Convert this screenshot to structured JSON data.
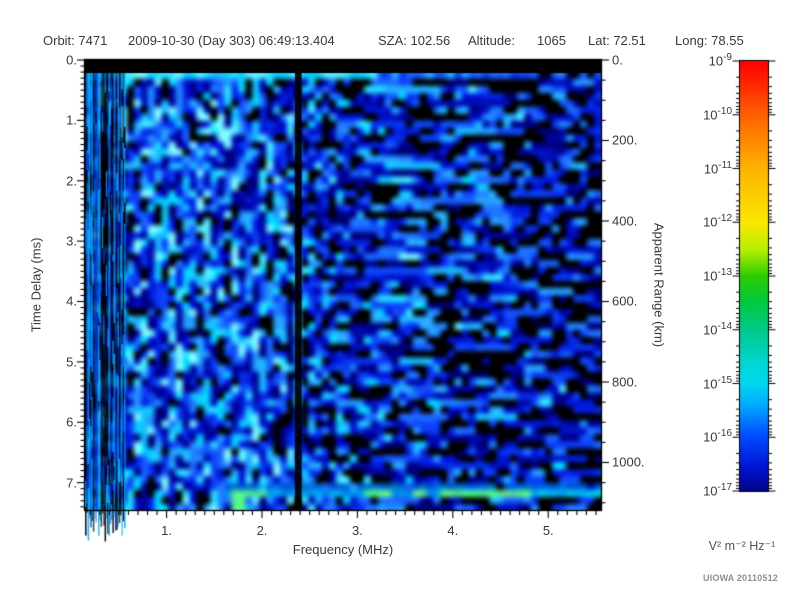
{
  "header": {
    "orbit": "Orbit: 7471",
    "datetime": "2009-10-30 (Day 303) 06:49:13.404",
    "sza": "SZA: 102.56",
    "altitude_label": "Altitude:",
    "altitude_value": "1065",
    "lat": "Lat: 72.51",
    "long": "Long: 78.55"
  },
  "watermark": "UIOWA 20110512",
  "chart_data": {
    "type": "heatmap",
    "subtype": "radar-sounder-ionogram",
    "x_axis": {
      "label": "Frequency (MHz)",
      "range": [
        0.145,
        5.553
      ],
      "major_ticks": [
        1,
        2,
        3,
        4,
        5
      ],
      "tick_labels": [
        "1.",
        "2.",
        "3.",
        "4.",
        "5."
      ],
      "minor_tick_step": 0.1
    },
    "y_axis": {
      "label": "Time Delay (ms)",
      "range": [
        0,
        7.47
      ],
      "direction": "down",
      "major_ticks": [
        0,
        1,
        2,
        3,
        4,
        5,
        6,
        7
      ],
      "tick_labels": [
        "0.",
        "1.",
        "2.",
        "3.",
        "4.",
        "5.",
        "6.",
        "7."
      ],
      "minor_tick_step": 0.1
    },
    "y2_axis": {
      "label": "Apparent Range (km)",
      "range": [
        0,
        1120
      ],
      "km_per_ms": 150,
      "major_ticks": [
        0,
        200,
        400,
        600,
        800,
        1000
      ],
      "tick_labels": [
        "0.",
        "200.",
        "400.",
        "600.",
        "800.",
        "1000."
      ],
      "minor_tick_step": 50
    },
    "colorbar": {
      "unit": "V² m⁻² Hz⁻¹",
      "scale": "log",
      "max": 1e-09,
      "min": 1e-17,
      "tick_labels": [
        {
          "base": "10",
          "exp": "-9"
        },
        {
          "base": "10",
          "exp": "-10"
        },
        {
          "base": "10",
          "exp": "-11"
        },
        {
          "base": "10",
          "exp": "-12"
        },
        {
          "base": "10",
          "exp": "-13"
        },
        {
          "base": "10",
          "exp": "-14"
        },
        {
          "base": "10",
          "exp": "-15"
        },
        {
          "base": "10",
          "exp": "-16"
        },
        {
          "base": "10",
          "exp": "-17"
        }
      ],
      "gradient": [
        [
          0.0,
          "#ff0000"
        ],
        [
          0.045,
          "#ff2000"
        ],
        [
          0.125,
          "#ff6000"
        ],
        [
          0.25,
          "#ffb300"
        ],
        [
          0.375,
          "#fbe800"
        ],
        [
          0.44,
          "#b4ef00"
        ],
        [
          0.5,
          "#2ecd00"
        ],
        [
          0.56,
          "#00c93c"
        ],
        [
          0.625,
          "#00c98a"
        ],
        [
          0.7,
          "#00d6d0"
        ],
        [
          0.75,
          "#00d9f0"
        ],
        [
          0.8,
          "#00aaff"
        ],
        [
          0.875,
          "#0048ff"
        ],
        [
          0.95,
          "#0011d0"
        ],
        [
          1.0,
          "#000486"
        ]
      ]
    },
    "features": {
      "noise_seed": 7471,
      "blackout_ms": [
        0,
        0.2
      ],
      "transmit_line_ms": 0.25,
      "plasma_streak_band_mhz": [
        0.145,
        0.56
      ],
      "dark_streak_band_mhz": [
        0.33,
        0.44
      ],
      "absorption_line_mhz": 2.37,
      "absorption_line_width_mhz": 0.05,
      "surface_echo": {
        "delay_ms": 7.15,
        "start_mhz": 1.62,
        "green_segments_mhz": [
          [
            1.68,
            2.05
          ],
          [
            3.05,
            3.35
          ],
          [
            3.55,
            3.75
          ],
          [
            3.85,
            4.85
          ]
        ],
        "cyan_tail_mhz": [
          4.9,
          5.55
        ]
      },
      "intensity_profile_mhz": [
        {
          "below": 0.56,
          "level": 0.5
        },
        {
          "below": 2.37,
          "level": 0.56
        },
        {
          "below": 2.85,
          "level": 0.47
        },
        {
          "below": 3.75,
          "level": 0.45
        },
        {
          "below": 4.85,
          "level": 0.36
        },
        {
          "below": 6.0,
          "level": 0.3
        }
      ]
    }
  }
}
